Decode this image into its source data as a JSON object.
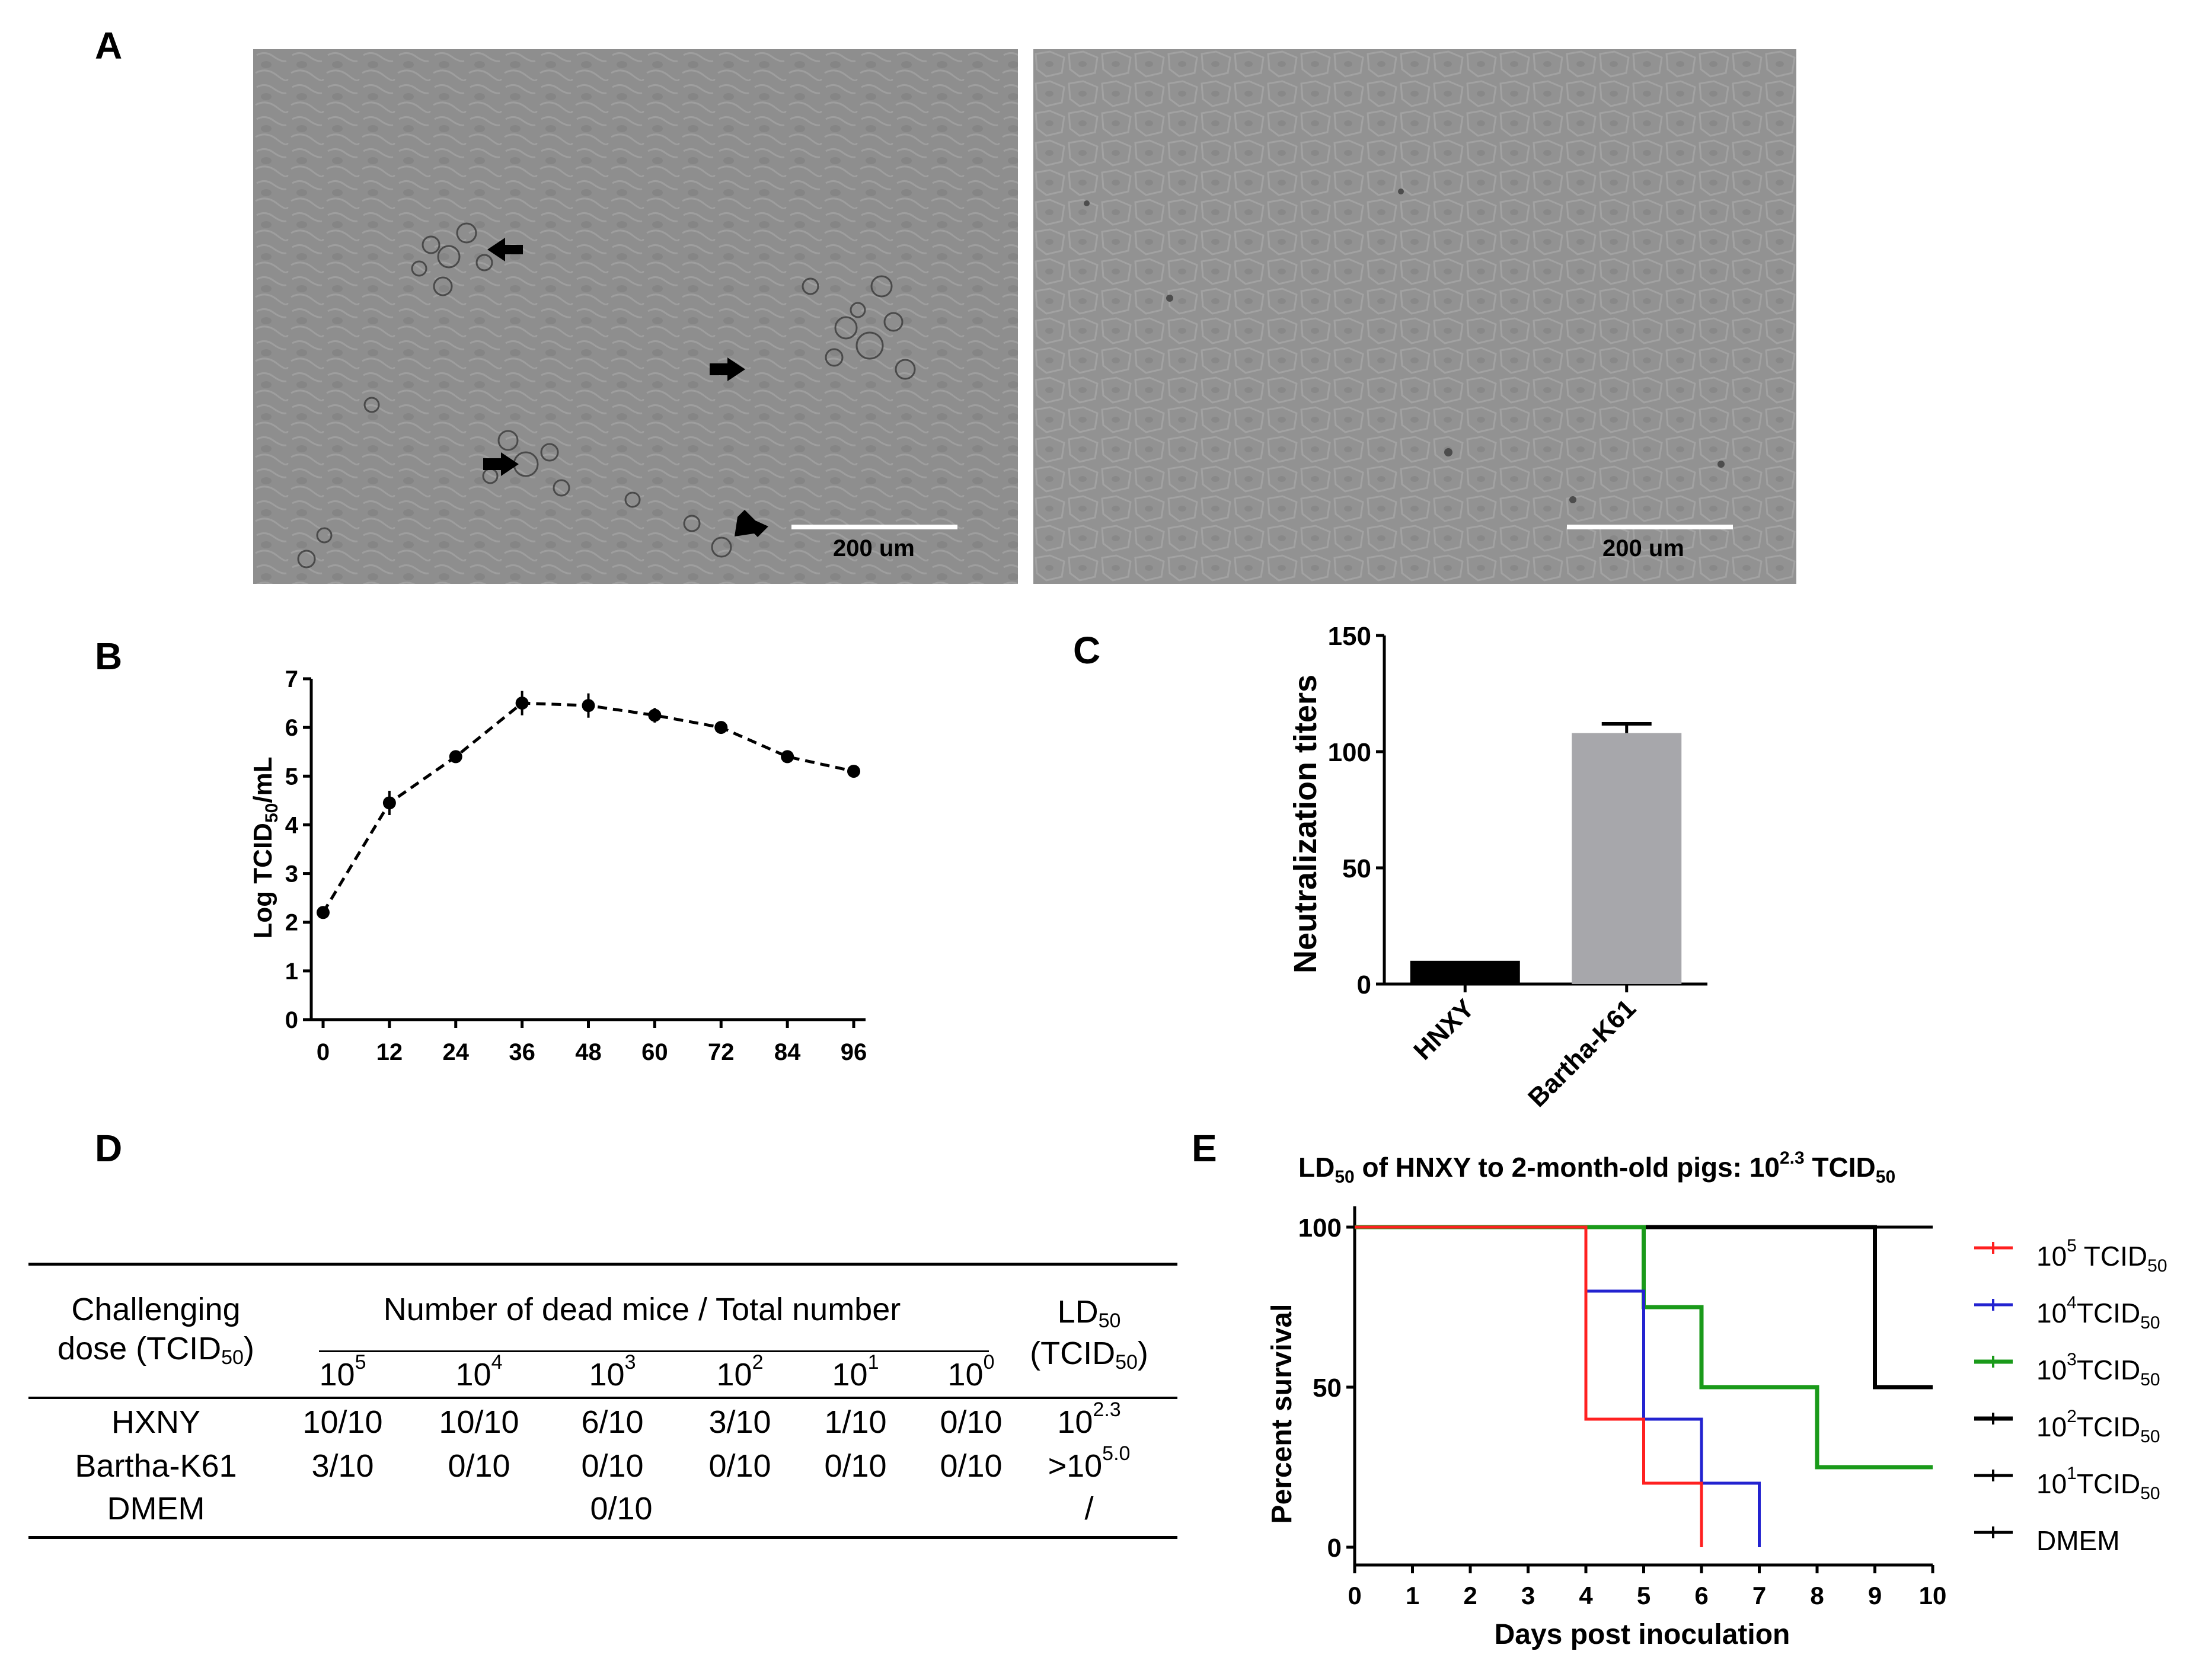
{
  "panel_labels": {
    "a": "A",
    "b": "B",
    "c": "C",
    "d": "D",
    "e": "E"
  },
  "panel_a": {
    "left_scale": "200 um",
    "right_scale": "200 um"
  },
  "chart_data": [
    {
      "panel": "B",
      "type": "line",
      "ylabel_main": "Log TCID",
      "ylabel_sub": "50",
      "ylabel_tail": "/mL",
      "x": [
        0,
        12,
        24,
        36,
        48,
        60,
        72,
        84,
        96
      ],
      "values": [
        2.2,
        4.45,
        5.4,
        6.5,
        6.45,
        6.25,
        6.0,
        5.4,
        5.1
      ],
      "error": [
        0.1,
        0.25,
        0.05,
        0.25,
        0.25,
        0.15,
        0.1,
        0.05,
        0.05
      ],
      "xticks": [
        "0",
        "12",
        "24",
        "36",
        "48",
        "60",
        "72",
        "84",
        "96"
      ],
      "yticks": [
        "0",
        "1",
        "2",
        "3",
        "4",
        "5",
        "6",
        "7"
      ],
      "ylim": [
        0,
        7
      ]
    },
    {
      "panel": "C",
      "type": "bar",
      "ylabel": "Neutralization titers",
      "categories": [
        "HNXY",
        "Bartha-K61"
      ],
      "values": [
        10,
        108
      ],
      "error": [
        0,
        4
      ],
      "colors": [
        "#000000",
        "#a7a7ab"
      ],
      "yticks": [
        "0",
        "50",
        "100",
        "150"
      ],
      "ylim": [
        0,
        150
      ]
    },
    {
      "panel": "E",
      "type": "line",
      "title_pre": "LD",
      "title_sub": "50",
      "title_mid": " of HNXY to 2-month-old pigs: 10",
      "title_sup": "2.3",
      "title_post": " TCID",
      "title_post_sub": "50",
      "xlabel": "Days post inoculation",
      "ylabel": "Percent survival",
      "xticks": [
        "0",
        "1",
        "2",
        "3",
        "4",
        "5",
        "6",
        "7",
        "8",
        "9",
        "10"
      ],
      "yticks": [
        "0",
        "50",
        "100"
      ],
      "xlim": [
        0,
        10
      ],
      "ylim": [
        0,
        100
      ],
      "series": [
        {
          "pre": "10",
          "sup": "5",
          "post": " TCID",
          "sub": "50",
          "color": "#ff2020",
          "points": [
            [
              0,
              100
            ],
            [
              4,
              100
            ],
            [
              4,
              40
            ],
            [
              5,
              40
            ],
            [
              5,
              20
            ],
            [
              6,
              20
            ],
            [
              6,
              0
            ]
          ]
        },
        {
          "pre": "10",
          "sup": "4",
          "post": "TCID",
          "sub": "50",
          "color": "#2323d0",
          "points": [
            [
              0,
              100
            ],
            [
              4,
              100
            ],
            [
              4,
              80
            ],
            [
              5,
              80
            ],
            [
              5,
              40
            ],
            [
              6,
              40
            ],
            [
              6,
              20
            ],
            [
              7,
              20
            ],
            [
              7,
              0
            ]
          ]
        },
        {
          "pre": "10",
          "sup": "3",
          "post": "TCID",
          "sub": "50",
          "color": "#1a9a1a",
          "points": [
            [
              0,
              100
            ],
            [
              5,
              100
            ],
            [
              5,
              75
            ],
            [
              6,
              75
            ],
            [
              6,
              50
            ],
            [
              8,
              50
            ],
            [
              8,
              25
            ],
            [
              10,
              25
            ]
          ]
        },
        {
          "pre": "10",
          "sup": "2",
          "post": "TCID",
          "sub": "50",
          "color": "#000000",
          "points": [
            [
              0,
              100
            ],
            [
              9,
              100
            ],
            [
              9,
              50
            ],
            [
              10,
              50
            ]
          ]
        },
        {
          "pre": "10",
          "sup": "1",
          "post": "TCID",
          "sub": "50",
          "color": "#000000",
          "points": [
            [
              0,
              100
            ],
            [
              10,
              100
            ]
          ]
        },
        {
          "pre": "DMEM",
          "sup": "",
          "post": "",
          "sub": "",
          "color": "#000000",
          "points": [
            [
              0,
              100
            ],
            [
              10,
              100
            ]
          ]
        }
      ]
    }
  ],
  "table_d": {
    "h_challenge_1": "Challenging",
    "h_challenge_2": "dose (TCID",
    "h_challenge_sub": "50",
    "h_challenge_close": ")",
    "h_number": "Number of dead mice / Total number",
    "h_ld_1": "LD",
    "h_ld_sub": "50",
    "h_ld_2": "(TCID",
    "h_ld_2_sub": "50",
    "h_ld_2_close": ")",
    "dose_base": "10",
    "dose_exps": [
      "5",
      "4",
      "3",
      "2",
      "1",
      "0"
    ],
    "rows": [
      {
        "name": "HXNY",
        "cells": [
          "10/10",
          "10/10",
          "6/10",
          "3/10",
          "1/10",
          "0/10"
        ],
        "ld_pre": "10",
        "ld_sup": "2.3"
      },
      {
        "name": "Bartha-K61",
        "cells": [
          "3/10",
          "0/10",
          "0/10",
          "0/10",
          "0/10",
          "0/10"
        ],
        "ld_pre": ">10",
        "ld_sup": "5.0"
      }
    ],
    "dmem_name": "DMEM",
    "dmem_value": "0/10",
    "dmem_ld": "/"
  }
}
